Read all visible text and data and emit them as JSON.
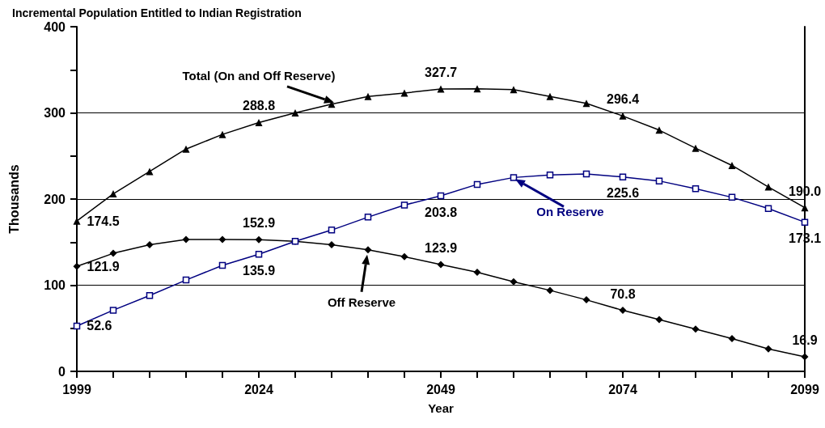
{
  "chart_data": {
    "type": "line",
    "title": "Incremental Population Entitled to Indian Registration",
    "xlabel": "Year",
    "ylabel": "Thousands",
    "x": [
      1999,
      2004,
      2009,
      2014,
      2019,
      2024,
      2029,
      2034,
      2039,
      2044,
      2049,
      2054,
      2059,
      2064,
      2069,
      2074,
      2079,
      2084,
      2089,
      2094,
      2099
    ],
    "series": [
      {
        "name": "Total (On and Off Reserve)",
        "color": "#000000",
        "marker": "triangle",
        "values": [
          174.5,
          206,
          232,
          258,
          275,
          288.8,
          300,
          310,
          319,
          323,
          327.7,
          328,
          327,
          319,
          311,
          296.4,
          280,
          259,
          239,
          214,
          190.0
        ],
        "value_labels": [
          "174.5",
          null,
          null,
          null,
          null,
          "288.8",
          null,
          null,
          null,
          null,
          "327.7",
          null,
          null,
          null,
          null,
          "296.4",
          null,
          null,
          null,
          null,
          "190.0"
        ]
      },
      {
        "name": "On Reserve",
        "color": "#000080",
        "marker": "square",
        "values": [
          52.6,
          71,
          88,
          106,
          123,
          135.9,
          151,
          164,
          179,
          193,
          203.8,
          217,
          225,
          228,
          229,
          225.6,
          221,
          212,
          202,
          189,
          173.1
        ],
        "value_labels": [
          "52.6",
          null,
          null,
          null,
          null,
          "135.9",
          null,
          null,
          null,
          null,
          "203.8",
          null,
          null,
          null,
          null,
          "225.6",
          null,
          null,
          null,
          null,
          "173.1"
        ]
      },
      {
        "name": "Off Reserve",
        "color": "#000000",
        "marker": "diamond",
        "values": [
          121.9,
          137,
          147,
          153,
          153,
          152.9,
          151,
          147,
          141,
          133,
          123.9,
          115,
          104,
          94,
          83,
          70.8,
          60,
          49,
          38,
          26,
          16.9
        ],
        "value_labels": [
          "121.9",
          null,
          null,
          null,
          null,
          "152.9",
          null,
          null,
          null,
          null,
          "123.9",
          null,
          null,
          null,
          null,
          "70.8",
          null,
          null,
          null,
          null,
          "16.9"
        ]
      }
    ],
    "xlim": [
      1999,
      2099
    ],
    "xticks": [
      1999,
      {
        "value": 2004,
        "label": null
      },
      {
        "value": 2009,
        "label": null
      },
      {
        "value": 2014,
        "label": null
      },
      {
        "value": 2019,
        "label": null
      },
      2024,
      {
        "value": 2029,
        "label": null
      },
      {
        "value": 2034,
        "label": null
      },
      {
        "value": 2039,
        "label": null
      },
      {
        "value": 2044,
        "label": null
      },
      2049,
      {
        "value": 2054,
        "label": null
      },
      {
        "value": 2059,
        "label": null
      },
      {
        "value": 2064,
        "label": null
      },
      {
        "value": 2069,
        "label": null
      },
      2074,
      {
        "value": 2079,
        "label": null
      },
      {
        "value": 2084,
        "label": null
      },
      {
        "value": 2089,
        "label": null
      },
      {
        "value": 2094,
        "label": null
      },
      2099
    ],
    "ylim": [
      0,
      400
    ],
    "yticks": [
      0,
      {
        "value": 50,
        "label": null
      },
      100,
      {
        "value": 150,
        "label": null
      },
      200,
      {
        "value": 250,
        "label": null
      },
      300,
      {
        "value": 350,
        "label": null
      },
      400
    ],
    "grid": "y",
    "legend": "center",
    "line_style": "solid"
  }
}
